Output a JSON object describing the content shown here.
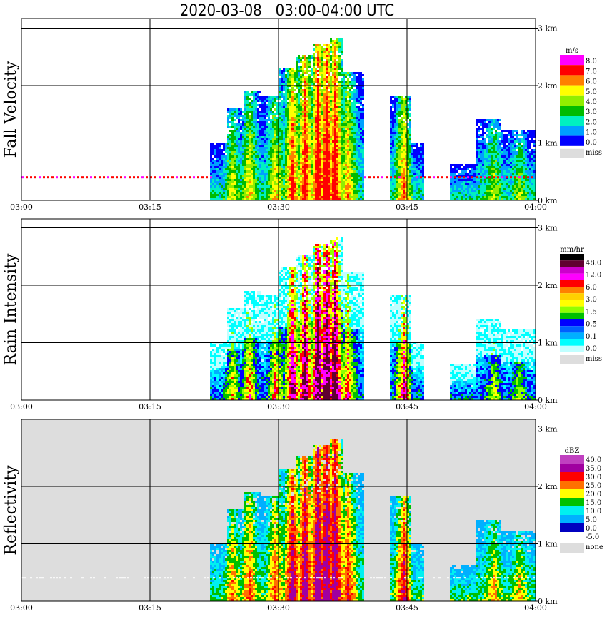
{
  "title": "2020-03-08   03:00-04:00 UTC",
  "x_ticks": [
    "03:00",
    "03:15",
    "03:30",
    "03:45",
    "04:00"
  ],
  "y_ticks": [
    "0 km",
    "1 km",
    "2 km",
    "3 km"
  ],
  "chart_data": [
    {
      "type": "heatmap",
      "panel": "Fall Velocity",
      "ylabel": "Fall Velocity",
      "xlim": [
        "03:00",
        "04:00"
      ],
      "ylim_km": [
        0,
        3.2
      ],
      "grid": true,
      "legend_placement": "right",
      "colorbar": {
        "unit": "m/s",
        "labels": [
          "8.0",
          "7.0",
          "6.0",
          "5.0",
          "4.0",
          "3.0",
          "2.0",
          "1.0",
          "0.0"
        ],
        "colors": [
          "#ff00ff",
          "#ff0000",
          "#ff8000",
          "#ffff00",
          "#90ee00",
          "#00bb00",
          "#00f0c0",
          "#00a0ff",
          "#0000ff"
        ],
        "missing_label": "miss",
        "missing_color": "#dddddd"
      }
    },
    {
      "type": "heatmap",
      "panel": "Rain Intensity",
      "ylabel": "Rain Intensity",
      "xlim": [
        "03:00",
        "04:00"
      ],
      "ylim_km": [
        0,
        3.2
      ],
      "grid": true,
      "legend_placement": "right",
      "colorbar": {
        "unit": "mm/hr",
        "labels": [
          "48.0",
          "12.0",
          "6.0",
          "3.0",
          "1.5",
          "0.5",
          "0.1",
          "0.0"
        ],
        "colors": [
          "#000000",
          "#600030",
          "#cc00cc",
          "#ff00ff",
          "#ff0000",
          "#ff8000",
          "#ffd000",
          "#ffff00",
          "#90ff00",
          "#00c000",
          "#0000ff",
          "#0060ff",
          "#00b0ff",
          "#00ffff",
          "#c0ffff"
        ],
        "missing_label": "miss",
        "missing_color": "#dddddd"
      }
    },
    {
      "type": "heatmap",
      "panel": "Reflectivity",
      "ylabel": "Reflectivity",
      "xlim": [
        "03:00",
        "04:00"
      ],
      "ylim_km": [
        0,
        3.2
      ],
      "grid": true,
      "legend_placement": "right",
      "colorbar": {
        "unit": "dBZ",
        "labels": [
          "40.0",
          "35.0",
          "30.0",
          "25.0",
          "20.0",
          "15.0",
          "10.0",
          "5.0",
          "0.0",
          "-5.0"
        ],
        "colors": [
          "#c040c0",
          "#a000a0",
          "#ff0000",
          "#ff7000",
          "#ffff00",
          "#00c000",
          "#00f0f0",
          "#00b0ff",
          "#0000c0",
          "#ffffff"
        ],
        "missing_label": "none",
        "missing_color": "#dddddd"
      }
    }
  ]
}
